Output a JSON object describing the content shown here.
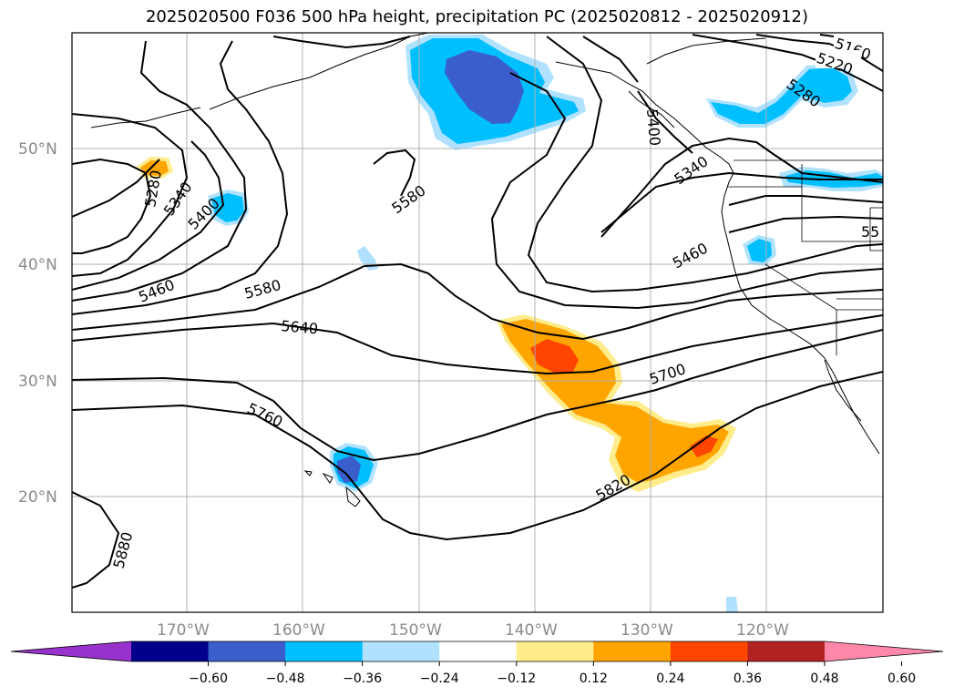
{
  "title": "2025020500 F036 500 hPa height, precipitation PC (2025020812 - 2025020912)",
  "map": {
    "lat_labels": [
      "50°N",
      "40°N",
      "30°N",
      "20°N"
    ],
    "lon_labels": [
      "170°W",
      "160°W",
      "150°W",
      "140°W",
      "130°W",
      "120°W"
    ],
    "contour_labels": [
      "5160",
      "5220",
      "5280",
      "5400",
      "5340",
      "5280",
      "5340",
      "5400",
      "5580",
      "5460",
      "5580",
      "5640",
      "5700",
      "5760",
      "5820",
      "5880",
      "5460",
      "55"
    ],
    "colors": {
      "land_outline": "#000000",
      "grid": "#b0b0b0",
      "contour": "#000000"
    }
  },
  "colorbar": {
    "colors": [
      "#9932cc",
      "#00008b",
      "#3a5fcd",
      "#00bfff",
      "#b0e2ff",
      "#ffffff",
      "#ffec8b",
      "#ffa500",
      "#ff4500",
      "#b22222",
      "#ff88aa"
    ],
    "tick_labels": [
      "−0.60",
      "−0.48",
      "−0.36",
      "−0.24",
      "−0.12",
      "0.12",
      "0.24",
      "0.36",
      "0.48",
      "0.60"
    ]
  }
}
